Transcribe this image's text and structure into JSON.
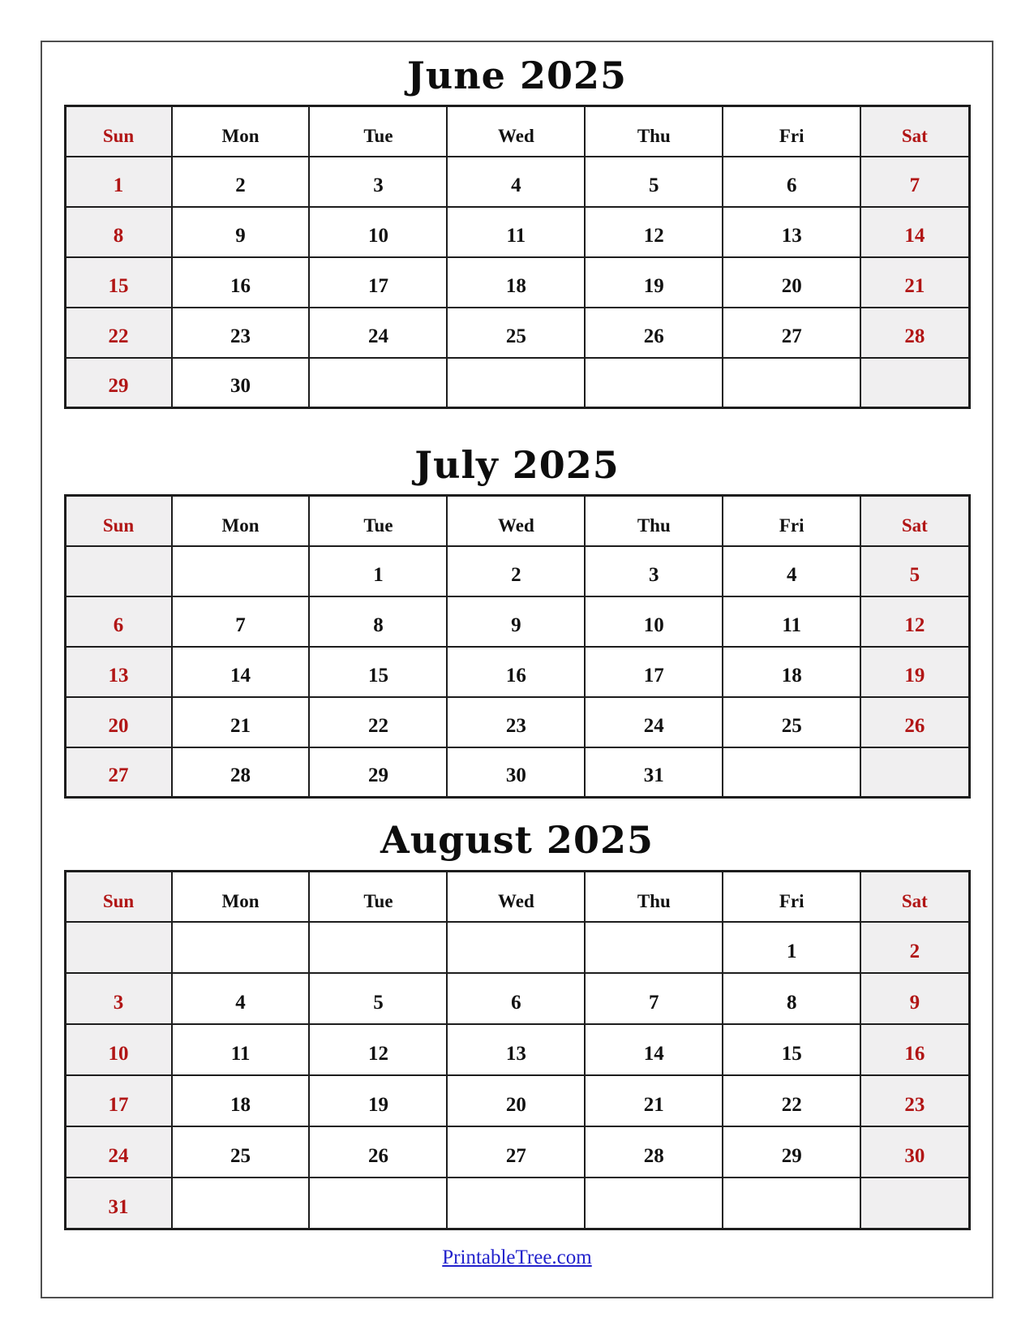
{
  "day_headers": [
    "Sun",
    "Mon",
    "Tue",
    "Wed",
    "Thu",
    "Fri",
    "Sat"
  ],
  "calendars": [
    {
      "title": "June 2025",
      "weeks": [
        [
          "1",
          "2",
          "3",
          "4",
          "5",
          "6",
          "7"
        ],
        [
          "8",
          "9",
          "10",
          "11",
          "12",
          "13",
          "14"
        ],
        [
          "15",
          "16",
          "17",
          "18",
          "19",
          "20",
          "21"
        ],
        [
          "22",
          "23",
          "24",
          "25",
          "26",
          "27",
          "28"
        ],
        [
          "29",
          "30",
          "",
          "",
          "",
          "",
          ""
        ]
      ]
    },
    {
      "title": "July 2025",
      "weeks": [
        [
          "",
          "",
          "1",
          "2",
          "3",
          "4",
          "5"
        ],
        [
          "6",
          "7",
          "8",
          "9",
          "10",
          "11",
          "12"
        ],
        [
          "13",
          "14",
          "15",
          "16",
          "17",
          "18",
          "19"
        ],
        [
          "20",
          "21",
          "22",
          "23",
          "24",
          "25",
          "26"
        ],
        [
          "27",
          "28",
          "29",
          "30",
          "31",
          "",
          ""
        ]
      ]
    },
    {
      "title": "August 2025",
      "weeks": [
        [
          "",
          "",
          "",
          "",
          "",
          "1",
          "2"
        ],
        [
          "3",
          "4",
          "5",
          "6",
          "7",
          "8",
          "9"
        ],
        [
          "10",
          "11",
          "12",
          "13",
          "14",
          "15",
          "16"
        ],
        [
          "17",
          "18",
          "19",
          "20",
          "21",
          "22",
          "23"
        ],
        [
          "24",
          "25",
          "26",
          "27",
          "28",
          "29",
          "30"
        ],
        [
          "31",
          "",
          "",
          "",
          "",
          "",
          ""
        ]
      ]
    }
  ],
  "footer": {
    "link_text": "PrintableTree.com"
  },
  "colors": {
    "weekend_text": "#b11515",
    "weekend_bg": "#f0eff0",
    "grid": "#1d1d1d",
    "frame": "#4f4f4f",
    "link": "#2222cc",
    "title": "#0d0d0d"
  }
}
